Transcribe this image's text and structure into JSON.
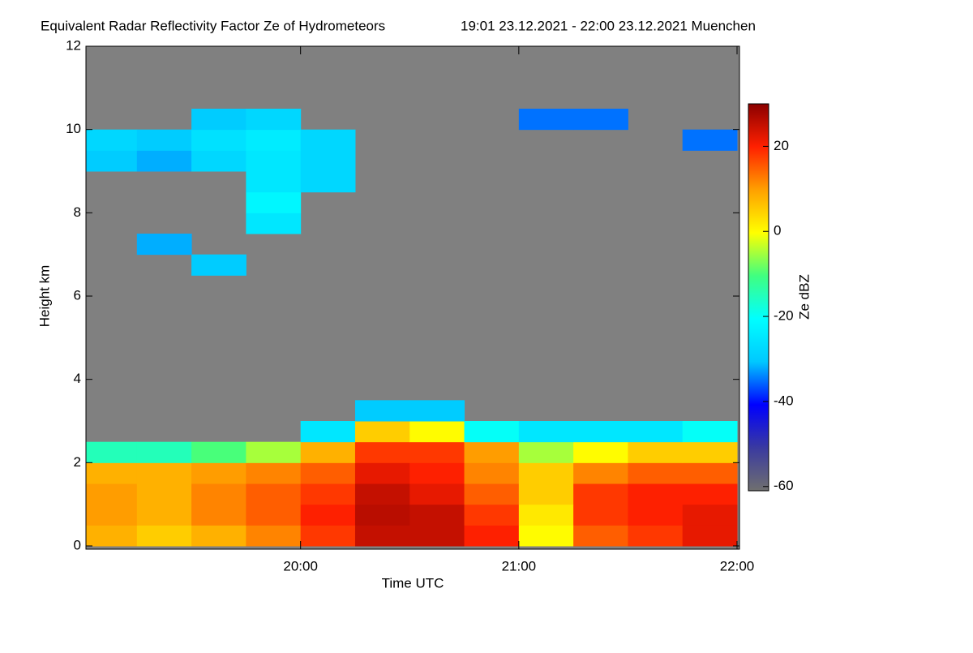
{
  "chart_data": {
    "type": "heatmap",
    "title": "Equivalent Radar Reflectivity Factor Ze of Hydrometeors",
    "subtitle": "19:01 23.12.2021 - 22:00 23.12.2021 Muenchen",
    "x_label": "Time UTC",
    "y_label": "Height km",
    "colorbar_label": "Ze dBZ",
    "x_edges": [
      1141,
      1155,
      1170,
      1185,
      1200,
      1215,
      1230,
      1245,
      1260,
      1275,
      1290,
      1305,
      1320
    ],
    "y_edges": [
      0,
      0.5,
      1,
      1.5,
      2,
      2.5,
      3,
      3.5,
      4,
      4.5,
      5,
      5.5,
      6,
      6.5,
      7,
      7.5,
      8,
      8.5,
      9,
      9.5,
      10,
      10.5,
      11,
      11.5,
      12
    ],
    "z": [
      [
        8,
        5,
        8,
        12,
        18,
        25,
        25,
        20,
        0,
        15,
        18,
        22
      ],
      [
        10,
        8,
        12,
        15,
        20,
        26,
        25,
        18,
        2,
        18,
        20,
        22
      ],
      [
        10,
        8,
        12,
        15,
        18,
        25,
        22,
        15,
        5,
        18,
        20,
        20
      ],
      [
        8,
        8,
        10,
        12,
        15,
        22,
        20,
        12,
        5,
        12,
        15,
        15
      ],
      [
        -15,
        -15,
        -10,
        -5,
        8,
        18,
        18,
        10,
        -5,
        0,
        5,
        5
      ],
      [
        null,
        null,
        null,
        null,
        -25,
        5,
        0,
        -20,
        -25,
        -25,
        -25,
        -20
      ],
      [
        null,
        null,
        null,
        null,
        null,
        -30,
        -30,
        null,
        null,
        null,
        null,
        null
      ],
      [
        null,
        null,
        null,
        null,
        null,
        null,
        null,
        null,
        null,
        null,
        null,
        null
      ],
      [
        null,
        null,
        null,
        null,
        null,
        null,
        null,
        null,
        null,
        null,
        null,
        null
      ],
      [
        null,
        null,
        null,
        null,
        null,
        null,
        null,
        null,
        null,
        null,
        null,
        null
      ],
      [
        null,
        null,
        null,
        null,
        null,
        null,
        null,
        null,
        null,
        null,
        null,
        null
      ],
      [
        null,
        null,
        null,
        null,
        null,
        null,
        null,
        null,
        null,
        null,
        null,
        null
      ],
      [
        null,
        null,
        null,
        null,
        null,
        null,
        null,
        null,
        null,
        null,
        null,
        null
      ],
      [
        null,
        null,
        -30,
        null,
        null,
        null,
        null,
        null,
        null,
        null,
        null,
        null
      ],
      [
        null,
        -32,
        null,
        null,
        null,
        null,
        null,
        null,
        null,
        null,
        null,
        null
      ],
      [
        null,
        null,
        null,
        -25,
        null,
        null,
        null,
        null,
        null,
        null,
        null,
        null
      ],
      [
        null,
        null,
        null,
        -22,
        null,
        null,
        null,
        null,
        null,
        null,
        null,
        null
      ],
      [
        null,
        null,
        null,
        -25,
        -28,
        null,
        null,
        null,
        null,
        null,
        null,
        null
      ],
      [
        -30,
        -32,
        -28,
        -25,
        -28,
        null,
        null,
        null,
        null,
        null,
        null,
        null
      ],
      [
        -28,
        -30,
        -26,
        -24,
        -28,
        null,
        null,
        null,
        null,
        null,
        null,
        -35
      ],
      [
        null,
        null,
        -30,
        -28,
        null,
        null,
        null,
        null,
        -35,
        -35,
        null,
        null
      ],
      [
        null,
        null,
        null,
        null,
        null,
        null,
        null,
        null,
        null,
        null,
        null,
        null
      ],
      [
        null,
        null,
        null,
        null,
        null,
        null,
        null,
        null,
        null,
        null,
        null,
        null
      ],
      [
        null,
        null,
        null,
        null,
        null,
        null,
        null,
        null,
        null,
        null,
        null,
        null
      ]
    ],
    "xlim": [
      1141,
      1320
    ],
    "ylim": [
      0,
      12
    ],
    "xticks": [
      {
        "value": 1200,
        "label": "20:00"
      },
      {
        "value": 1260,
        "label": "21:00"
      },
      {
        "value": 1320,
        "label": "22:00"
      }
    ],
    "yticks": [
      0,
      2,
      4,
      6,
      8,
      10,
      12
    ],
    "zlim": [
      -61,
      30
    ],
    "zticks": [
      -60,
      -40,
      -20,
      0,
      20
    ],
    "colorscale": [
      "#6f6f6f",
      "#3a3aa0",
      "#0000ff",
      "#00c8ff",
      "#00ffff",
      "#40ff80",
      "#ffff00",
      "#ffa000",
      "#ff2000",
      "#8b0000"
    ]
  }
}
